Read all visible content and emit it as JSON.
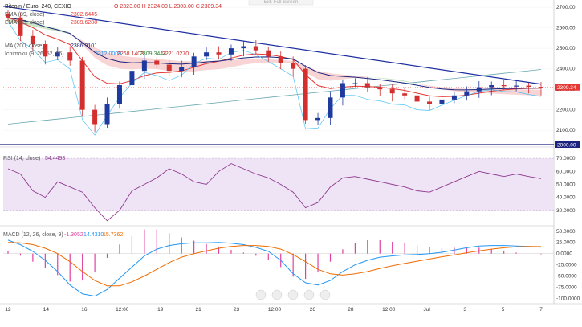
{
  "header": {
    "symbol_label": "Bitcoin / Euro, 240, CEXIO",
    "ohlc": "O 2323.00  H 2324.00  L 2303.00  C 2309.34",
    "top_tab": "Ext. Full Screen"
  },
  "indicators": {
    "ema1": {
      "label": "EMA (89, close)",
      "value": "2302.6445"
    },
    "ema2": {
      "label": "EMA (55, close)",
      "value": "2389.6288"
    },
    "ma": {
      "label": "MA (200, close)",
      "value": "2386.9101"
    },
    "ichimoku": {
      "label": "Ichimoku (9, 26, 52, 26)",
      "v1": "2312.0000",
      "v2": "2268.1403",
      "v3": "2309.3444",
      "v4": "2221.0270"
    }
  },
  "price_axis": {
    "ticks": [
      "2700.00",
      "2600.00",
      "2500.00",
      "2400.00",
      "2300.00",
      "2200.00",
      "2100.00"
    ],
    "last_price": "2309.34",
    "line_label": "2000.00",
    "colors": {
      "last_price_bg": "#e53935",
      "line_bg": "#1a237e"
    }
  },
  "rsi": {
    "label": "RSI (14, close)",
    "value": "54.4493",
    "ticks": [
      "70.0000",
      "60.0000",
      "50.0000",
      "40.0000",
      "30.0000"
    ]
  },
  "macd": {
    "label": "MACD (12, 26, close, 9)",
    "v1": "-1.3052",
    "v2": "14.4310",
    "v3": "15.7362",
    "ticks": [
      "50.0000",
      "25.0000",
      "0.0000",
      "-25.0000",
      "-50.0000",
      "-75.0000",
      "-100.0000"
    ]
  },
  "x_axis": {
    "labels": [
      "12",
      "14",
      "16",
      "12:00",
      "19",
      "21",
      "23",
      "12:00",
      "26",
      "28",
      "12:00",
      "Jul",
      "3",
      "5",
      "7"
    ]
  },
  "colors": {
    "up_candle": "#1e3a9e",
    "down_candle": "#d32f2f",
    "trendline": "#1e2fa0",
    "ema_red": "#e53935",
    "ema_navy": "#1a237e",
    "ma_teal": "#6aa7b0",
    "cloud_green": "#b9dcb4",
    "cloud_red": "#f5c6c6",
    "rsi_line": "#8e3b8e",
    "rsi_band": "#efe3f6",
    "macd_blue": "#2196f3",
    "macd_orange": "#ef6c00",
    "macd_hist": "#e040a0"
  },
  "chart_data": [
    {
      "type": "candlestick",
      "title": "Bitcoin / Euro, 240, CEXIO",
      "ylim": [
        2030,
        2720
      ],
      "x": [
        "12",
        "14",
        "16",
        "12:00",
        "19",
        "21",
        "23",
        "12:00",
        "26",
        "28",
        "12:00",
        "Jul",
        "3",
        "5",
        "7"
      ],
      "close_series": [
        2650,
        2560,
        2520,
        2460,
        2480,
        2440,
        2200,
        2130,
        2230,
        2320,
        2390,
        2440,
        2420,
        2390,
        2410,
        2460,
        2480,
        2470,
        2500,
        2510,
        2490,
        2460,
        2430,
        2400,
        2150,
        2160,
        2260,
        2330,
        2330,
        2310,
        2300,
        2280,
        2270,
        2240,
        2230,
        2250,
        2270,
        2290,
        2310,
        2320,
        2315,
        2318,
        2312,
        2309
      ],
      "last": 2309.34
    },
    {
      "type": "line",
      "title": "RSI (14, close)",
      "ylim": [
        20,
        75
      ],
      "values": [
        62,
        58,
        45,
        40,
        52,
        48,
        44,
        32,
        22,
        30,
        45,
        50,
        55,
        62,
        58,
        52,
        50,
        60,
        66,
        62,
        58,
        55,
        50,
        44,
        32,
        36,
        48,
        55,
        56,
        54,
        52,
        50,
        48,
        45,
        44,
        48,
        52,
        56,
        60,
        58,
        56,
        58,
        56,
        54.45
      ]
    },
    {
      "type": "line",
      "title": "MACD (12, 26, close, 9)",
      "ylim": [
        -110,
        55
      ],
      "series": [
        {
          "name": "macd",
          "values": [
            30,
            20,
            5,
            -15,
            -40,
            -70,
            -90,
            -95,
            -80,
            -55,
            -30,
            -5,
            10,
            18,
            22,
            24,
            24,
            25,
            23,
            20,
            14,
            5,
            -15,
            -45,
            -65,
            -70,
            -60,
            -40,
            -25,
            -15,
            -8,
            -5,
            -3,
            -2,
            0,
            3,
            8,
            13,
            17,
            18,
            18,
            17,
            16,
            14.43
          ]
        },
        {
          "name": "signal",
          "values": [
            25,
            24,
            20,
            12,
            0,
            -18,
            -40,
            -60,
            -72,
            -72,
            -63,
            -50,
            -35,
            -20,
            -8,
            0,
            6,
            12,
            16,
            18,
            18,
            16,
            10,
            -2,
            -18,
            -35,
            -45,
            -48,
            -45,
            -40,
            -33,
            -27,
            -22,
            -17,
            -12,
            -7,
            -3,
            2,
            6,
            10,
            13,
            15,
            16,
            15.74
          ]
        }
      ]
    }
  ]
}
